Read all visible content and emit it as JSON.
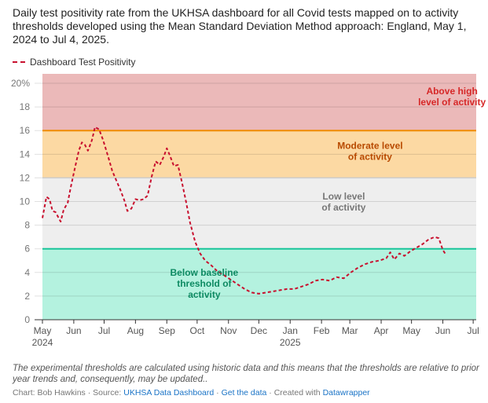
{
  "title": "Daily test positivity rate from the UKHSA dashboard for all Covid tests mapped on to activity thresholds developed using the Mean Standard Deviation Method approach: England, May 1, 2024 to Jul 4, 2025.",
  "notes": "The experimental thresholds are calculated using historic data and this means that the thresholds are relative to prior year trends and, consequently, may be updated..",
  "credits": {
    "chart_by": "Chart: Bob Hawkins",
    "sep1": " · Source: ",
    "source": "UKHSA Data Dashboard",
    "sep2": " · ",
    "get_data": "Get the data",
    "sep3": " · Created with ",
    "tool": "Datawrapper"
  },
  "colors": {
    "line": "#c8102e",
    "band_high": "#ebb9b9",
    "band_moderate": "#fcd9a3",
    "band_low": "#eeeeee",
    "band_baseline": "#b4f2df",
    "line_high": "#f08c00",
    "line_baseline": "#19c49a",
    "text_high": "#d62828",
    "text_moderate": "#b84a00",
    "text_low": "#777777",
    "text_baseline": "#0d8a62",
    "link": "#1a73c6"
  },
  "chart_data": {
    "type": "line",
    "xlim": [
      "2024-05-01",
      "2025-07-04"
    ],
    "ylim": [
      0,
      20
    ],
    "y_ticks": [
      0,
      2,
      4,
      6,
      8,
      10,
      12,
      14,
      16,
      18,
      20
    ],
    "y_tick_labels": [
      "0",
      "2",
      "4",
      "6",
      "8",
      "10",
      "12",
      "14",
      "16",
      "18",
      "20%"
    ],
    "x_ticks": [
      {
        "date": "2024-05-01",
        "label": "May",
        "sublabel": "2024"
      },
      {
        "date": "2024-06-01",
        "label": "Jun",
        "sublabel": ""
      },
      {
        "date": "2024-07-01",
        "label": "Jul",
        "sublabel": ""
      },
      {
        "date": "2024-08-01",
        "label": "Aug",
        "sublabel": ""
      },
      {
        "date": "2024-09-01",
        "label": "Sep",
        "sublabel": ""
      },
      {
        "date": "2024-10-01",
        "label": "Oct",
        "sublabel": ""
      },
      {
        "date": "2024-11-01",
        "label": "Nov",
        "sublabel": ""
      },
      {
        "date": "2024-12-01",
        "label": "Dec",
        "sublabel": ""
      },
      {
        "date": "2025-01-01",
        "label": "Jan",
        "sublabel": "2025"
      },
      {
        "date": "2025-02-01",
        "label": "Feb",
        "sublabel": ""
      },
      {
        "date": "2025-03-01",
        "label": "Mar",
        "sublabel": ""
      },
      {
        "date": "2025-04-01",
        "label": "Apr",
        "sublabel": ""
      },
      {
        "date": "2025-05-01",
        "label": "May",
        "sublabel": ""
      },
      {
        "date": "2025-06-01",
        "label": "Jun",
        "sublabel": ""
      },
      {
        "date": "2025-07-01",
        "label": "Jul",
        "sublabel": ""
      }
    ],
    "thresholds": [
      {
        "from": 16,
        "to": 20.8,
        "line": true,
        "label": [
          "Above high",
          "level of activity"
        ],
        "label_date": "2025-06-10",
        "label_y": 18.6
      },
      {
        "from": 12,
        "to": 16,
        "line": false,
        "label": [
          "Moderate level",
          "of activity"
        ],
        "label_date": "2025-03-21",
        "label_y": 14.0
      },
      {
        "from": 6,
        "to": 12,
        "line": false,
        "label": [
          "Low level",
          "of activity"
        ],
        "label_date": "2025-02-23",
        "label_y": 9.7
      },
      {
        "from": 0,
        "to": 6,
        "line": true,
        "label": [
          "Below baseline",
          "threshold of",
          "activity"
        ],
        "label_date": "2024-10-08",
        "label_y": 2.8
      }
    ],
    "series": [
      {
        "name": "Dashboard Test Positivity",
        "points": [
          [
            "2024-05-01",
            8.6
          ],
          [
            "2024-05-05",
            10.4
          ],
          [
            "2024-05-08",
            10.2
          ],
          [
            "2024-05-11",
            9.2
          ],
          [
            "2024-05-14",
            9.1
          ],
          [
            "2024-05-19",
            8.3
          ],
          [
            "2024-05-22",
            9.3
          ],
          [
            "2024-05-26",
            9.9
          ],
          [
            "2024-05-29",
            11.2
          ],
          [
            "2024-06-02",
            12.8
          ],
          [
            "2024-06-06",
            14.3
          ],
          [
            "2024-06-09",
            15.0
          ],
          [
            "2024-06-12",
            14.8
          ],
          [
            "2024-06-15",
            14.3
          ],
          [
            "2024-06-19",
            15.2
          ],
          [
            "2024-06-22",
            16.3
          ],
          [
            "2024-06-26",
            16.1
          ],
          [
            "2024-06-30",
            15.2
          ],
          [
            "2024-07-05",
            13.8
          ],
          [
            "2024-07-09",
            12.6
          ],
          [
            "2024-07-13",
            11.8
          ],
          [
            "2024-07-17",
            11.0
          ],
          [
            "2024-07-21",
            10.1
          ],
          [
            "2024-07-24",
            9.2
          ],
          [
            "2024-07-28",
            9.4
          ],
          [
            "2024-08-01",
            10.2
          ],
          [
            "2024-08-05",
            10.1
          ],
          [
            "2024-08-09",
            10.2
          ],
          [
            "2024-08-13",
            10.5
          ],
          [
            "2024-08-17",
            12.1
          ],
          [
            "2024-08-21",
            13.4
          ],
          [
            "2024-08-25",
            13.1
          ],
          [
            "2024-08-29",
            13.8
          ],
          [
            "2024-09-01",
            14.5
          ],
          [
            "2024-09-04",
            13.9
          ],
          [
            "2024-09-08",
            13.0
          ],
          [
            "2024-09-12",
            13.1
          ],
          [
            "2024-09-16",
            11.6
          ],
          [
            "2024-09-20",
            10.0
          ],
          [
            "2024-09-24",
            8.2
          ],
          [
            "2024-09-29",
            6.6
          ],
          [
            "2024-10-04",
            5.6
          ],
          [
            "2024-10-09",
            5.0
          ],
          [
            "2024-10-15",
            4.6
          ],
          [
            "2024-10-21",
            4.1
          ],
          [
            "2024-10-27",
            3.8
          ],
          [
            "2024-11-03",
            3.4
          ],
          [
            "2024-11-10",
            3.0
          ],
          [
            "2024-11-17",
            2.6
          ],
          [
            "2024-11-24",
            2.3
          ],
          [
            "2024-12-01",
            2.2
          ],
          [
            "2024-12-08",
            2.3
          ],
          [
            "2024-12-15",
            2.4
          ],
          [
            "2024-12-22",
            2.5
          ],
          [
            "2024-12-29",
            2.6
          ],
          [
            "2025-01-05",
            2.6
          ],
          [
            "2025-01-12",
            2.8
          ],
          [
            "2025-01-19",
            3.0
          ],
          [
            "2025-01-26",
            3.3
          ],
          [
            "2025-02-02",
            3.4
          ],
          [
            "2025-02-09",
            3.3
          ],
          [
            "2025-02-16",
            3.6
          ],
          [
            "2025-02-23",
            3.5
          ],
          [
            "2025-03-02",
            4.0
          ],
          [
            "2025-03-09",
            4.4
          ],
          [
            "2025-03-16",
            4.7
          ],
          [
            "2025-03-23",
            4.9
          ],
          [
            "2025-03-30",
            5.0
          ],
          [
            "2025-04-06",
            5.2
          ],
          [
            "2025-04-10",
            5.7
          ],
          [
            "2025-04-14",
            5.1
          ],
          [
            "2025-04-19",
            5.6
          ],
          [
            "2025-04-24",
            5.4
          ],
          [
            "2025-04-30",
            5.8
          ],
          [
            "2025-05-06",
            6.1
          ],
          [
            "2025-05-12",
            6.4
          ],
          [
            "2025-05-18",
            6.8
          ],
          [
            "2025-05-24",
            7.0
          ],
          [
            "2025-05-28",
            6.9
          ],
          [
            "2025-06-01",
            5.9
          ],
          [
            "2025-06-04",
            5.5
          ]
        ]
      }
    ]
  }
}
